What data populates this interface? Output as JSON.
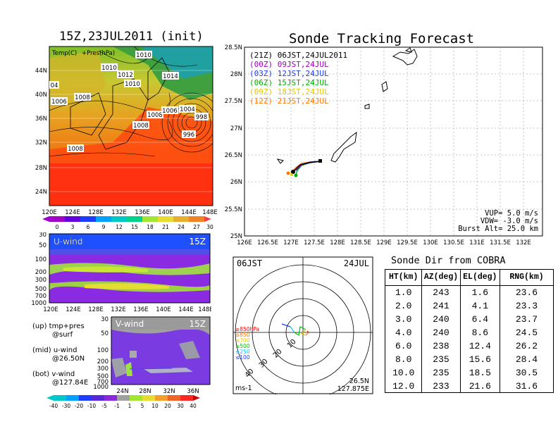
{
  "top_left": {
    "title": "15Z,23JUL2011 (init)",
    "sub_label_1": "Temp(C)",
    "sub_label_2": "+Pres(hPa)",
    "lat_labels": [
      "44N",
      "40N",
      "36N",
      "32N",
      "28N",
      "24N"
    ],
    "lon_labels": [
      "120E",
      "124E",
      "128E",
      "132E",
      "136E",
      "140E",
      "144E",
      "148E"
    ],
    "pressure_labels": [
      "1010",
      "1010",
      "1012",
      "1014",
      "1010",
      "1008",
      "1006",
      "1008",
      "1008",
      "1006",
      "1004",
      "998",
      "996",
      "1008",
      "04"
    ],
    "colorbar_labels": [
      "0",
      "3",
      "6",
      "9",
      "12",
      "15",
      "18",
      "21",
      "24",
      "27",
      "30"
    ]
  },
  "tracking": {
    "title": "Sonde Tracking Forecast",
    "lat_labels": [
      "28.5N",
      "28N",
      "27.5N",
      "27N",
      "26.5N",
      "26N",
      "25.5N",
      "25N"
    ],
    "lon_labels": [
      "126E",
      "126.5E",
      "127E",
      "127.5E",
      "128E",
      "128.5E",
      "129E",
      "129.5E",
      "130E",
      "130.5E",
      "131E",
      "131.5E",
      "132E"
    ],
    "legend": [
      {
        "text": "(21Z)  06JST,24JUL2011",
        "color": "#000000"
      },
      {
        "text": "(00Z)  09JST,24JUL",
        "color": "#a000c0"
      },
      {
        "text": "(03Z)  12JST,24JUL",
        "color": "#1e3cff"
      },
      {
        "text": "(06Z)  15JST,24JUL",
        "color": "#00b000"
      },
      {
        "text": "(09Z)  18JST,24JUL",
        "color": "#e6c800"
      },
      {
        "text": "(12Z)  21JST,24JUL",
        "color": "#ff7800"
      }
    ],
    "vup": "VUP=  5.0 m/s",
    "vdw": "VDW= -3.0 m/s",
    "burst": "Burst Alt=  25.0 km"
  },
  "u_wind": {
    "label": "U-wind",
    "time": "15Z",
    "p_labels": [
      "30",
      "50",
      "100",
      "200",
      "300",
      "500",
      "700",
      "1000"
    ],
    "lon_labels": [
      "120E",
      "124E",
      "128E",
      "132E",
      "136E",
      "140E",
      "144E",
      "148E"
    ]
  },
  "v_wind": {
    "label": "V-wind",
    "time": "15Z",
    "p_labels": [
      "30",
      "50",
      "100",
      "200",
      "300",
      "500",
      "700",
      "1000"
    ],
    "lat_labels": [
      "24N",
      "28N",
      "32N",
      "36N"
    ],
    "colorbar_labels": [
      "-40",
      "-30",
      "-20",
      "-10",
      "-5",
      "-1",
      "1",
      "5",
      "10",
      "20",
      "30",
      "40"
    ]
  },
  "notes": [
    {
      "line1": "(up) tmp+pres",
      "line2": "@surf"
    },
    {
      "line1": "(mid) u-wind",
      "line2": "@26.50N"
    },
    {
      "line1": "(bot) v-wind",
      "line2": "@127.84E"
    }
  ],
  "polar": {
    "time_label": "06JST",
    "date_label": "24JUL",
    "ring_labels": [
      "10",
      "20",
      "30",
      "40"
    ],
    "levels": [
      {
        "text": "≥850hPa",
        "color": "#ff0000"
      },
      {
        "text": "≤850",
        "color": "#ff7800"
      },
      {
        "text": "≤700",
        "color": "#e6c800"
      },
      {
        "text": "≤500",
        "color": "#00c000"
      },
      {
        "text": "≤250",
        "color": "#00c8ff"
      },
      {
        "text": "≤100",
        "color": "#1e3cff"
      }
    ],
    "unit": "ms-1",
    "lat": "26.5N",
    "lon": "127.875E"
  },
  "table": {
    "title": "Sonde Dir from COBRA",
    "headers": [
      "HT(km)",
      "AZ(deg)",
      "EL(deg)",
      "RNG(km)"
    ],
    "rows": [
      [
        "1.0",
        "243",
        "1.6",
        "23.6"
      ],
      [
        "2.0",
        "241",
        "4.1",
        "23.3"
      ],
      [
        "3.0",
        "240",
        "6.4",
        "23.7"
      ],
      [
        "4.0",
        "240",
        "8.6",
        "24.5"
      ],
      [
        "6.0",
        "238",
        "12.4",
        "26.2"
      ],
      [
        "8.0",
        "235",
        "15.6",
        "28.4"
      ],
      [
        "10.0",
        "235",
        "18.5",
        "30.5"
      ],
      [
        "12.0",
        "233",
        "21.6",
        "31.6"
      ]
    ]
  },
  "chart_data": {
    "type": "table",
    "title": "Sonde Dir from COBRA",
    "columns": [
      "HT(km)",
      "AZ(deg)",
      "EL(deg)",
      "RNG(km)"
    ],
    "rows": [
      [
        1.0,
        243,
        1.6,
        23.6
      ],
      [
        2.0,
        241,
        4.1,
        23.3
      ],
      [
        3.0,
        240,
        6.4,
        23.7
      ],
      [
        4.0,
        240,
        8.6,
        24.5
      ],
      [
        6.0,
        238,
        12.4,
        26.2
      ],
      [
        8.0,
        235,
        15.6,
        28.4
      ],
      [
        10.0,
        235,
        18.5,
        30.5
      ],
      [
        12.0,
        233,
        21.6,
        31.6
      ]
    ]
  }
}
